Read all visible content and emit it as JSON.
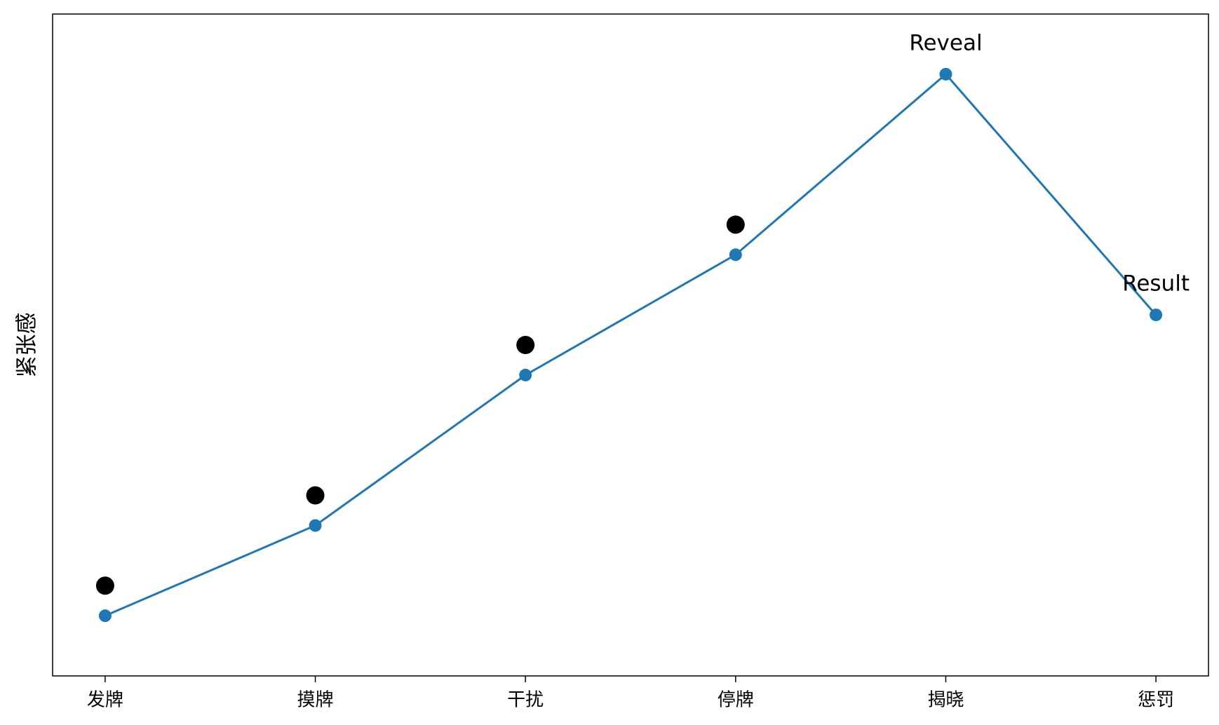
{
  "chart_data": {
    "type": "line",
    "ylabel": "紧张感",
    "categories": [
      "发牌",
      "摸牌",
      "干扰",
      "停牌",
      "揭晓",
      "惩罚"
    ],
    "series": [
      {
        "color": "#1f77b4",
        "values": [
          1,
          2.5,
          5,
          7,
          10,
          6
        ],
        "style": "line"
      },
      {
        "color": "#000000",
        "values": [
          1.5,
          3,
          5.5,
          7.5,
          null,
          null
        ],
        "style": "scatter"
      }
    ],
    "annotations": [
      {
        "text": "Reveal",
        "x": "揭晓"
      },
      {
        "text": "Result",
        "x": "惩罚"
      }
    ],
    "ylim": [
      0,
      11
    ],
    "grid": false
  }
}
